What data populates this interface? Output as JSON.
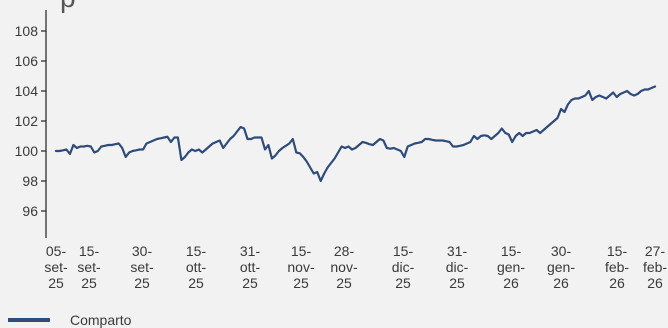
{
  "title_fragment": "p",
  "chart_data": {
    "type": "line",
    "title": "",
    "xlabel": "",
    "ylabel": "",
    "ylim": [
      94,
      108
    ],
    "y_ticks": [
      96,
      98,
      100,
      102,
      104,
      106,
      108
    ],
    "x_tick_labels": [
      [
        "05-",
        "set-",
        "25"
      ],
      [
        "15-",
        "set-",
        "25"
      ],
      [
        "30-",
        "set-",
        "25"
      ],
      [
        "15-",
        "ott-",
        "25"
      ],
      [
        "31-",
        "ott-",
        "25"
      ],
      [
        "15-",
        "nov-",
        "25"
      ],
      [
        "28-",
        "nov-",
        "25"
      ],
      [
        "15-",
        "dic-",
        "25"
      ],
      [
        "31-",
        "dic-",
        "25"
      ],
      [
        "15-",
        "gen-",
        "26"
      ],
      [
        "30-",
        "gen-",
        "26"
      ],
      [
        "15-",
        "feb-",
        "26"
      ],
      [
        "27-",
        "feb-",
        "26"
      ]
    ],
    "grid": false,
    "legend_position": "bottom-left",
    "series": [
      {
        "name": "Comparto",
        "color": "#2e4b7a",
        "points": [
          [
            "2025-09-05",
            100.0
          ],
          [
            "2025-09-06",
            100.0
          ],
          [
            "2025-09-07",
            100.05
          ],
          [
            "2025-09-08",
            100.1
          ],
          [
            "2025-09-09",
            99.8
          ],
          [
            "2025-09-10",
            100.4
          ],
          [
            "2025-09-11",
            100.2
          ],
          [
            "2025-09-12",
            100.3
          ],
          [
            "2025-09-13",
            100.3
          ],
          [
            "2025-09-14",
            100.35
          ],
          [
            "2025-09-15",
            100.3
          ],
          [
            "2025-09-16",
            99.9
          ],
          [
            "2025-09-17",
            100.0
          ],
          [
            "2025-09-18",
            100.3
          ],
          [
            "2025-09-19",
            100.35
          ],
          [
            "2025-09-20",
            100.4
          ],
          [
            "2025-09-21",
            100.4
          ],
          [
            "2025-09-22",
            100.45
          ],
          [
            "2025-09-23",
            100.5
          ],
          [
            "2025-09-24",
            100.2
          ],
          [
            "2025-09-25",
            99.6
          ],
          [
            "2025-09-26",
            99.9
          ],
          [
            "2025-09-27",
            100.0
          ],
          [
            "2025-09-28",
            100.05
          ],
          [
            "2025-09-29",
            100.1
          ],
          [
            "2025-09-30",
            100.1
          ],
          [
            "2025-10-01",
            100.5
          ],
          [
            "2025-10-02",
            100.6
          ],
          [
            "2025-10-03",
            100.7
          ],
          [
            "2025-10-04",
            100.8
          ],
          [
            "2025-10-05",
            100.85
          ],
          [
            "2025-10-06",
            100.9
          ],
          [
            "2025-10-07",
            100.95
          ],
          [
            "2025-10-08",
            100.6
          ],
          [
            "2025-10-09",
            100.9
          ],
          [
            "2025-10-10",
            100.9
          ],
          [
            "2025-10-11",
            99.4
          ],
          [
            "2025-10-12",
            99.6
          ],
          [
            "2025-10-13",
            99.9
          ],
          [
            "2025-10-14",
            100.1
          ],
          [
            "2025-10-15",
            100.0
          ],
          [
            "2025-10-16",
            100.1
          ],
          [
            "2025-10-17",
            99.9
          ],
          [
            "2025-10-18",
            100.1
          ],
          [
            "2025-10-19",
            100.3
          ],
          [
            "2025-10-20",
            100.5
          ],
          [
            "2025-10-21",
            100.6
          ],
          [
            "2025-10-22",
            100.7
          ],
          [
            "2025-10-23",
            100.2
          ],
          [
            "2025-10-24",
            100.5
          ],
          [
            "2025-10-25",
            100.8
          ],
          [
            "2025-10-26",
            101.0
          ],
          [
            "2025-10-27",
            101.3
          ],
          [
            "2025-10-28",
            101.6
          ],
          [
            "2025-10-29",
            101.5
          ],
          [
            "2025-10-30",
            100.8
          ],
          [
            "2025-10-31",
            100.8
          ],
          [
            "2025-11-01",
            100.9
          ],
          [
            "2025-11-02",
            100.9
          ],
          [
            "2025-11-03",
            100.9
          ],
          [
            "2025-11-04",
            100.1
          ],
          [
            "2025-11-05",
            100.4
          ],
          [
            "2025-11-06",
            99.5
          ],
          [
            "2025-11-07",
            99.7
          ],
          [
            "2025-11-08",
            100.0
          ],
          [
            "2025-11-09",
            100.2
          ],
          [
            "2025-11-10",
            100.35
          ],
          [
            "2025-11-11",
            100.5
          ],
          [
            "2025-11-12",
            100.8
          ],
          [
            "2025-11-13",
            99.9
          ],
          [
            "2025-11-14",
            99.85
          ],
          [
            "2025-11-15",
            99.6
          ],
          [
            "2025-11-16",
            99.3
          ],
          [
            "2025-11-17",
            98.9
          ],
          [
            "2025-11-18",
            98.5
          ],
          [
            "2025-11-19",
            98.6
          ],
          [
            "2025-11-20",
            98.0
          ],
          [
            "2025-11-21",
            98.5
          ],
          [
            "2025-11-22",
            98.9
          ],
          [
            "2025-11-23",
            99.2
          ],
          [
            "2025-11-24",
            99.5
          ],
          [
            "2025-11-25",
            99.9
          ],
          [
            "2025-11-26",
            100.3
          ],
          [
            "2025-11-27",
            100.2
          ],
          [
            "2025-11-28",
            100.3
          ],
          [
            "2025-11-29",
            100.1
          ],
          [
            "2025-11-30",
            100.2
          ],
          [
            "2025-12-01",
            100.4
          ],
          [
            "2025-12-02",
            100.6
          ],
          [
            "2025-12-03",
            100.55
          ],
          [
            "2025-12-04",
            100.45
          ],
          [
            "2025-12-05",
            100.4
          ],
          [
            "2025-12-06",
            100.6
          ],
          [
            "2025-12-07",
            100.8
          ],
          [
            "2025-12-08",
            100.7
          ],
          [
            "2025-12-09",
            100.2
          ],
          [
            "2025-12-10",
            100.15
          ],
          [
            "2025-12-11",
            100.2
          ],
          [
            "2025-12-12",
            100.1
          ],
          [
            "2025-12-13",
            100.0
          ],
          [
            "2025-12-14",
            99.6
          ],
          [
            "2025-12-15",
            100.3
          ],
          [
            "2025-12-16",
            100.4
          ],
          [
            "2025-12-17",
            100.5
          ],
          [
            "2025-12-18",
            100.55
          ],
          [
            "2025-12-19",
            100.6
          ],
          [
            "2025-12-20",
            100.8
          ],
          [
            "2025-12-21",
            100.8
          ],
          [
            "2025-12-22",
            100.75
          ],
          [
            "2025-12-23",
            100.7
          ],
          [
            "2025-12-24",
            100.7
          ],
          [
            "2025-12-25",
            100.7
          ],
          [
            "2025-12-26",
            100.65
          ],
          [
            "2025-12-27",
            100.6
          ],
          [
            "2025-12-28",
            100.3
          ],
          [
            "2025-12-29",
            100.3
          ],
          [
            "2025-12-30",
            100.35
          ],
          [
            "2025-12-31",
            100.4
          ],
          [
            "2026-01-01",
            100.5
          ],
          [
            "2026-01-02",
            100.6
          ],
          [
            "2026-01-03",
            101.0
          ],
          [
            "2026-01-04",
            100.8
          ],
          [
            "2026-01-05",
            101.0
          ],
          [
            "2026-01-06",
            101.05
          ],
          [
            "2026-01-07",
            101.0
          ],
          [
            "2026-01-08",
            100.8
          ],
          [
            "2026-01-09",
            101.0
          ],
          [
            "2026-01-10",
            101.2
          ],
          [
            "2026-01-11",
            101.5
          ],
          [
            "2026-01-12",
            101.2
          ],
          [
            "2026-01-13",
            101.1
          ],
          [
            "2026-01-14",
            100.6
          ],
          [
            "2026-01-15",
            101.0
          ],
          [
            "2026-01-16",
            101.2
          ],
          [
            "2026-01-17",
            101.0
          ],
          [
            "2026-01-18",
            101.2
          ],
          [
            "2026-01-19",
            101.2
          ],
          [
            "2026-01-20",
            101.3
          ],
          [
            "2026-01-21",
            101.4
          ],
          [
            "2026-01-22",
            101.2
          ],
          [
            "2026-01-23",
            101.4
          ],
          [
            "2026-01-24",
            101.6
          ],
          [
            "2026-01-25",
            101.8
          ],
          [
            "2026-01-26",
            102.0
          ],
          [
            "2026-01-27",
            102.2
          ],
          [
            "2026-01-28",
            102.8
          ],
          [
            "2026-01-29",
            102.6
          ],
          [
            "2026-01-30",
            103.1
          ],
          [
            "2026-01-31",
            103.4
          ],
          [
            "2026-02-01",
            103.5
          ],
          [
            "2026-02-02",
            103.5
          ],
          [
            "2026-02-03",
            103.6
          ],
          [
            "2026-02-04",
            103.7
          ],
          [
            "2026-02-05",
            104.0
          ],
          [
            "2026-02-06",
            103.4
          ],
          [
            "2026-02-07",
            103.6
          ],
          [
            "2026-02-08",
            103.7
          ],
          [
            "2026-02-09",
            103.6
          ],
          [
            "2026-02-10",
            103.5
          ],
          [
            "2026-02-11",
            103.7
          ],
          [
            "2026-02-12",
            103.9
          ],
          [
            "2026-02-13",
            103.6
          ],
          [
            "2026-02-14",
            103.8
          ],
          [
            "2026-02-15",
            103.9
          ],
          [
            "2026-02-16",
            104.0
          ],
          [
            "2026-02-17",
            103.8
          ],
          [
            "2026-02-18",
            103.7
          ],
          [
            "2026-02-19",
            103.8
          ],
          [
            "2026-02-20",
            104.0
          ],
          [
            "2026-02-21",
            104.1
          ],
          [
            "2026-02-22",
            104.1
          ],
          [
            "2026-02-23",
            104.2
          ],
          [
            "2026-02-24",
            104.3
          ]
        ]
      }
    ]
  }
}
